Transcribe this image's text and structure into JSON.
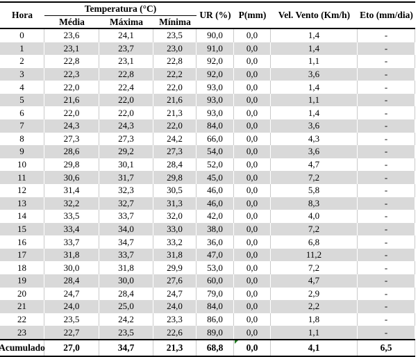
{
  "table": {
    "header": {
      "hora": "Hora",
      "temp_group": "Temperatura (°C)",
      "temp_sub": [
        "Média",
        "Máxima",
        "Mínima"
      ],
      "ur": "UR (%)",
      "p": "P(mm)",
      "vento": "Vel. Vento (Km/h)",
      "eto": "Eto (mm/dia)"
    },
    "rows": [
      [
        "0",
        "23,6",
        "24,1",
        "23,5",
        "90,0",
        "0,0",
        "1,4",
        "-"
      ],
      [
        "1",
        "23,1",
        "23,7",
        "23,0",
        "91,0",
        "0,0",
        "1,4",
        "-"
      ],
      [
        "2",
        "22,8",
        "23,1",
        "22,8",
        "92,0",
        "0,0",
        "1,1",
        "-"
      ],
      [
        "3",
        "22,3",
        "22,8",
        "22,2",
        "92,0",
        "0,0",
        "3,6",
        "-"
      ],
      [
        "4",
        "22,0",
        "22,4",
        "22,0",
        "93,0",
        "0,0",
        "1,4",
        "-"
      ],
      [
        "5",
        "21,6",
        "22,0",
        "21,6",
        "93,0",
        "0,0",
        "1,1",
        "-"
      ],
      [
        "6",
        "22,0",
        "22,0",
        "21,3",
        "93,0",
        "0,0",
        "1,4",
        "-"
      ],
      [
        "7",
        "24,3",
        "24,3",
        "22,0",
        "84,0",
        "0,0",
        "3,6",
        "-"
      ],
      [
        "8",
        "27,3",
        "27,3",
        "24,2",
        "66,0",
        "0,0",
        "4,3",
        "-"
      ],
      [
        "9",
        "28,6",
        "29,2",
        "27,3",
        "54,0",
        "0,0",
        "3,6",
        "-"
      ],
      [
        "10",
        "29,8",
        "30,1",
        "28,4",
        "52,0",
        "0,0",
        "4,7",
        "-"
      ],
      [
        "11",
        "30,6",
        "31,7",
        "29,8",
        "45,0",
        "0,0",
        "7,2",
        "-"
      ],
      [
        "12",
        "31,4",
        "32,3",
        "30,5",
        "46,0",
        "0,0",
        "5,8",
        "-"
      ],
      [
        "13",
        "32,2",
        "32,7",
        "31,3",
        "46,0",
        "0,0",
        "8,3",
        "-"
      ],
      [
        "14",
        "33,5",
        "33,7",
        "32,0",
        "42,0",
        "0,0",
        "4,0",
        "-"
      ],
      [
        "15",
        "33,4",
        "34,0",
        "33,0",
        "38,0",
        "0,0",
        "7,2",
        "-"
      ],
      [
        "16",
        "33,7",
        "34,7",
        "33,2",
        "36,0",
        "0,0",
        "6,8",
        "-"
      ],
      [
        "17",
        "31,8",
        "33,7",
        "31,8",
        "47,0",
        "0,0",
        "11,2",
        "-"
      ],
      [
        "18",
        "30,0",
        "31,8",
        "29,9",
        "53,0",
        "0,0",
        "7,2",
        "-"
      ],
      [
        "19",
        "28,4",
        "30,0",
        "27,6",
        "60,0",
        "0,0",
        "4,7",
        "-"
      ],
      [
        "20",
        "24,7",
        "28,4",
        "24,7",
        "79,0",
        "0,0",
        "2,9",
        "-"
      ],
      [
        "21",
        "24,0",
        "25,0",
        "24,0",
        "84,0",
        "0,0",
        "2,2",
        "-"
      ],
      [
        "22",
        "23,5",
        "24,2",
        "23,3",
        "86,0",
        "0,0",
        "1,8",
        "-"
      ],
      [
        "23",
        "22,7",
        "23,5",
        "22,6",
        "89,0",
        "0,0",
        "1,1",
        "-"
      ]
    ],
    "footer": [
      "Acumulado",
      "27,0",
      "34,7",
      "21,3",
      "68,8",
      "0,0",
      "4,1",
      "6,5"
    ]
  },
  "colors": {
    "row_alt": "#D9D9D9",
    "gridline": "#C9C9C9",
    "border": "#000000",
    "comment_marker_green": "#1F7A1F"
  }
}
